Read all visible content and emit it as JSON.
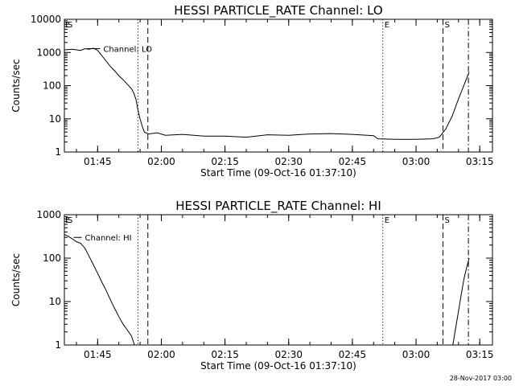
{
  "chart_data": [
    {
      "type": "line",
      "title": "HESSI PARTICLE_RATE Channel: LO",
      "xlabel": "Start Time (09-Oct-16 01:37:10)",
      "ylabel": "Counts/sec",
      "y_scale": "log",
      "ylim": [
        1,
        10000
      ],
      "xlim": [
        "01:37:10",
        "03:18:00"
      ],
      "x_ticks": [
        "01:45",
        "02:00",
        "02:15",
        "02:30",
        "02:45",
        "03:00",
        "03:15"
      ],
      "y_ticks": [
        "1",
        "10",
        "100",
        "1000",
        "10000"
      ],
      "series": [
        {
          "name": "Channel: LO",
          "points": [
            [
              "01:37:10",
              1200
            ],
            [
              "01:39:00",
              1250
            ],
            [
              "01:41:00",
              1150
            ],
            [
              "01:42:00",
              1300
            ],
            [
              "01:43:00",
              1250
            ],
            [
              "01:44:00",
              1350
            ],
            [
              "01:45:00",
              1150
            ],
            [
              "01:46:00",
              800
            ],
            [
              "01:47:00",
              550
            ],
            [
              "01:48:00",
              380
            ],
            [
              "01:49:00",
              280
            ],
            [
              "01:50:00",
              200
            ],
            [
              "01:51:00",
              150
            ],
            [
              "01:52:00",
              110
            ],
            [
              "01:53:00",
              80
            ],
            [
              "01:53:30",
              60
            ],
            [
              "01:54:00",
              40
            ],
            [
              "01:54:30",
              18
            ],
            [
              "01:55:00",
              10
            ],
            [
              "01:55:30",
              6
            ],
            [
              "01:56:00",
              4
            ],
            [
              "01:57:00",
              3.5
            ],
            [
              "01:59:00",
              3.8
            ],
            [
              "02:01:00",
              3.2
            ],
            [
              "02:05:00",
              3.4
            ],
            [
              "02:10:00",
              3.0
            ],
            [
              "02:15:00",
              3.0
            ],
            [
              "02:20:00",
              2.8
            ],
            [
              "02:25:00",
              3.3
            ],
            [
              "02:30:00",
              3.2
            ],
            [
              "02:35:00",
              3.5
            ],
            [
              "02:40:00",
              3.6
            ],
            [
              "02:45:00",
              3.4
            ],
            [
              "02:50:00",
              3.1
            ],
            [
              "02:51:00",
              2.5
            ],
            [
              "02:55:00",
              2.4
            ],
            [
              "03:00:00",
              2.4
            ],
            [
              "03:04:00",
              2.5
            ],
            [
              "03:05:30",
              2.8
            ],
            [
              "03:07:00",
              5
            ],
            [
              "03:08:30",
              12
            ],
            [
              "03:10:00",
              40
            ],
            [
              "03:11:30",
              120
            ],
            [
              "03:12:30",
              260
            ]
          ]
        }
      ],
      "vlines": [
        {
          "x": "01:54:30",
          "style": "dotted"
        },
        {
          "x": "01:56:50",
          "style": "dashed"
        },
        {
          "x": "02:52:10",
          "style": "dotted"
        },
        {
          "x": "03:06:20",
          "style": "dashed"
        },
        {
          "x": "03:12:20",
          "style": "dashdot"
        }
      ],
      "annotations": [
        {
          "text": "E",
          "x": "01:37:10"
        },
        {
          "text": "S",
          "x": "01:37:10"
        },
        {
          "text": "E",
          "x": "02:52:10"
        },
        {
          "text": "S",
          "x": "03:06:20"
        },
        {
          "text": "Channel: LO",
          "x": "01:46:20",
          "y": 1300
        }
      ],
      "grid": false
    },
    {
      "type": "line",
      "title": "HESSI PARTICLE_RATE Channel: HI",
      "xlabel": "Start Time (09-Oct-16 01:37:10)",
      "ylabel": "Counts/sec",
      "y_scale": "log",
      "ylim": [
        1,
        1000
      ],
      "xlim": [
        "01:37:10",
        "03:18:00"
      ],
      "x_ticks": [
        "01:45",
        "02:00",
        "02:15",
        "02:30",
        "02:45",
        "03:00",
        "03:15"
      ],
      "y_ticks": [
        "1",
        "10",
        "100",
        "1000"
      ],
      "series": [
        {
          "name": "Channel: HI",
          "points": [
            [
              "01:37:10",
              350
            ],
            [
              "01:38:00",
              320
            ],
            [
              "01:39:00",
              280
            ],
            [
              "01:40:00",
              240
            ],
            [
              "01:41:00",
              220
            ],
            [
              "01:42:00",
              170
            ],
            [
              "01:43:00",
              110
            ],
            [
              "01:44:00",
              70
            ],
            [
              "01:45:00",
              45
            ],
            [
              "01:46:00",
              28
            ],
            [
              "01:47:00",
              18
            ],
            [
              "01:48:00",
              11
            ],
            [
              "01:49:00",
              7
            ],
            [
              "01:50:00",
              4.5
            ],
            [
              "01:51:00",
              3
            ],
            [
              "01:52:00",
              2.2
            ],
            [
              "01:53:00",
              1.6
            ],
            [
              "01:53:40",
              1.0
            ]
          ]
        },
        {
          "name": "",
          "points": [
            [
              "03:08:40",
              1.0
            ],
            [
              "03:09:20",
              2.5
            ],
            [
              "03:10:00",
              6
            ],
            [
              "03:10:40",
              15
            ],
            [
              "03:11:20",
              35
            ],
            [
              "03:12:00",
              65
            ],
            [
              "03:12:30",
              100
            ]
          ]
        }
      ],
      "vlines": [
        {
          "x": "01:54:30",
          "style": "dotted"
        },
        {
          "x": "01:56:50",
          "style": "dashed"
        },
        {
          "x": "02:52:10",
          "style": "dotted"
        },
        {
          "x": "03:06:20",
          "style": "dashed"
        },
        {
          "x": "03:12:20",
          "style": "dashdot"
        }
      ],
      "annotations": [
        {
          "text": "E",
          "x": "01:37:10"
        },
        {
          "text": "S",
          "x": "01:37:10"
        },
        {
          "text": "E",
          "x": "02:52:10"
        },
        {
          "text": "S",
          "x": "03:06:20"
        },
        {
          "text": "Channel: HI",
          "x": "01:42:00",
          "y": 300
        }
      ],
      "grid": false
    }
  ],
  "footer": {
    "timestamp": "28-Nov-2017 03:00"
  }
}
